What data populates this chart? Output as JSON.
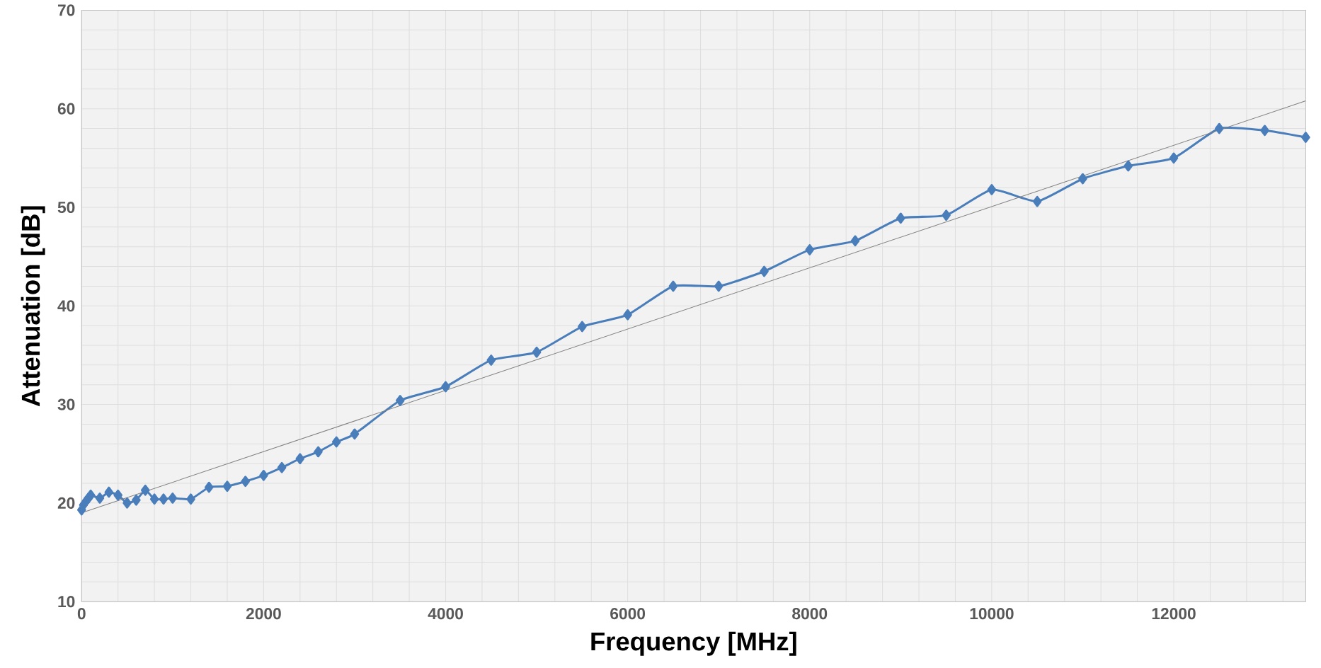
{
  "chart_data": {
    "type": "line",
    "xlabel": "Frequency [MHz]",
    "ylabel": "Attenuation [dB]",
    "xlim": [
      0,
      13450
    ],
    "ylim": [
      10,
      70
    ],
    "xticks": [
      0,
      {
        "value": 400,
        "label": null
      },
      {
        "value": 800,
        "label": null
      },
      {
        "value": 1200,
        "label": null
      },
      {
        "value": 1600,
        "label": null
      },
      2000,
      {
        "value": 2400,
        "label": null
      },
      {
        "value": 2800,
        "label": null
      },
      {
        "value": 3200,
        "label": null
      },
      {
        "value": 3600,
        "label": null
      },
      4000,
      {
        "value": 4400,
        "label": null
      },
      {
        "value": 4800,
        "label": null
      },
      {
        "value": 5200,
        "label": null
      },
      {
        "value": 5600,
        "label": null
      },
      6000,
      {
        "value": 6400,
        "label": null
      },
      {
        "value": 6800,
        "label": null
      },
      {
        "value": 7200,
        "label": null
      },
      {
        "value": 7600,
        "label": null
      },
      8000,
      {
        "value": 8400,
        "label": null
      },
      {
        "value": 8800,
        "label": null
      },
      {
        "value": 9200,
        "label": null
      },
      {
        "value": 9600,
        "label": null
      },
      10000,
      {
        "value": 10400,
        "label": null
      },
      {
        "value": 10800,
        "label": null
      },
      {
        "value": 11200,
        "label": null
      },
      {
        "value": 11600,
        "label": null
      },
      12000,
      {
        "value": 12400,
        "label": null
      },
      {
        "value": 12800,
        "label": null
      },
      {
        "value": 13200,
        "label": null
      }
    ],
    "yticks": [
      10,
      {
        "value": 12,
        "label": null
      },
      {
        "value": 14,
        "label": null
      },
      {
        "value": 16,
        "label": null
      },
      {
        "value": 18,
        "label": null
      },
      20,
      {
        "value": 22,
        "label": null
      },
      {
        "value": 24,
        "label": null
      },
      {
        "value": 26,
        "label": null
      },
      {
        "value": 28,
        "label": null
      },
      30,
      {
        "value": 32,
        "label": null
      },
      {
        "value": 34,
        "label": null
      },
      {
        "value": 36,
        "label": null
      },
      {
        "value": 38,
        "label": null
      },
      40,
      {
        "value": 42,
        "label": null
      },
      {
        "value": 44,
        "label": null
      },
      {
        "value": 46,
        "label": null
      },
      {
        "value": 48,
        "label": null
      },
      50,
      {
        "value": 52,
        "label": null
      },
      {
        "value": 54,
        "label": null
      },
      {
        "value": 56,
        "label": null
      },
      {
        "value": 58,
        "label": null
      },
      60,
      {
        "value": 62,
        "label": null
      },
      {
        "value": 64,
        "label": null
      },
      {
        "value": 66,
        "label": null
      },
      {
        "value": 68,
        "label": null
      },
      70
    ],
    "grid": true,
    "series": [
      {
        "color": "#4a7ebb",
        "marker": "diamond",
        "line_style": "solid",
        "x": [
          0,
          20,
          50,
          75,
          100,
          200,
          300,
          400,
          500,
          600,
          700,
          800,
          900,
          1000,
          1200,
          1400,
          1600,
          1800,
          2000,
          2200,
          2400,
          2600,
          2800,
          3000,
          3500,
          4000,
          4500,
          5000,
          5500,
          6000,
          6500,
          7000,
          7500,
          8000,
          8500,
          9000,
          9500,
          10000,
          10500,
          11000,
          11500,
          12000,
          12500,
          13000,
          13450
        ],
        "values": [
          19.3,
          19.8,
          20.2,
          20.5,
          20.8,
          20.5,
          21.1,
          20.8,
          20.0,
          20.3,
          21.3,
          20.4,
          20.4,
          20.5,
          20.4,
          21.6,
          21.7,
          22.2,
          22.8,
          23.6,
          24.5,
          25.2,
          26.2,
          27.0,
          30.4,
          31.8,
          34.5,
          35.3,
          37.9,
          39.1,
          42.0,
          42.0,
          43.5,
          45.7,
          46.6,
          48.9,
          49.2,
          51.8,
          50.6,
          52.9,
          54.2,
          55.0,
          58.0,
          57.8,
          57.1
        ]
      },
      {
        "color": "#808080",
        "marker": "none",
        "line_style": "solid",
        "x": [
          0,
          13450
        ],
        "values": [
          19.0,
          60.8
        ]
      }
    ]
  }
}
